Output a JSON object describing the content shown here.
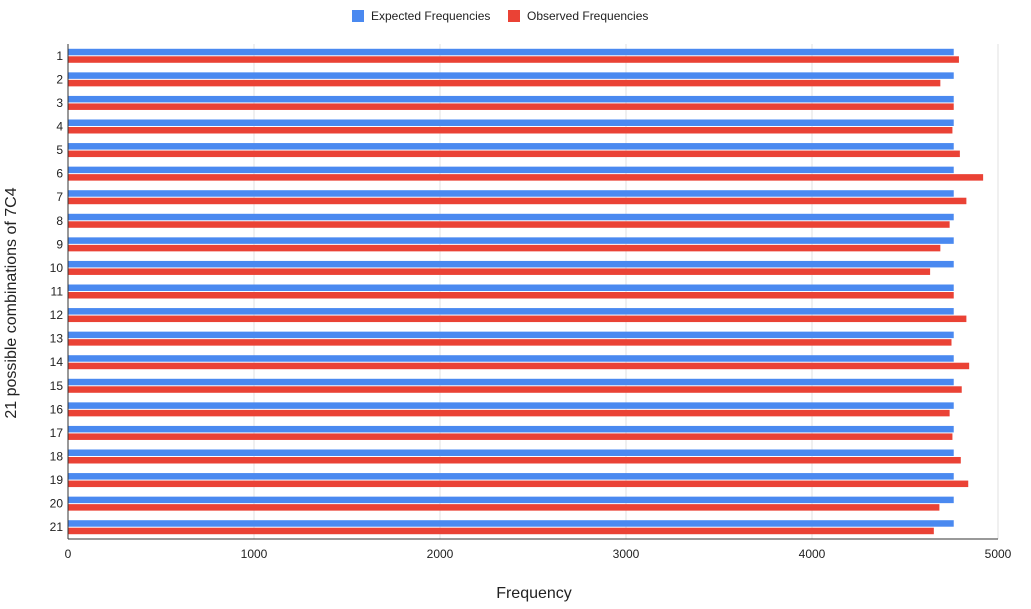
{
  "chart_data": {
    "type": "bar",
    "orientation": "horizontal",
    "title": "",
    "xlabel": "Frequency",
    "ylabel": "21 possible combinations of 7C4",
    "xlim": [
      0,
      5000
    ],
    "x_ticks": [
      0,
      1000,
      2000,
      3000,
      4000,
      5000
    ],
    "grid": true,
    "legend_position": "top",
    "categories": [
      "1",
      "2",
      "3",
      "4",
      "5",
      "6",
      "7",
      "8",
      "9",
      "10",
      "11",
      "12",
      "13",
      "14",
      "15",
      "16",
      "17",
      "18",
      "19",
      "20",
      "21"
    ],
    "series": [
      {
        "name": "Expected Frequencies",
        "color": "#4a89f0",
        "values": [
          4762,
          4762,
          4762,
          4762,
          4762,
          4762,
          4762,
          4762,
          4762,
          4762,
          4762,
          4762,
          4762,
          4762,
          4762,
          4762,
          4762,
          4762,
          4762,
          4762,
          4762
        ]
      },
      {
        "name": "Observed Frequencies",
        "color": "#ea4235",
        "values": [
          4790,
          4690,
          4762,
          4755,
          4795,
          4920,
          4830,
          4740,
          4690,
          4635,
          4762,
          4830,
          4750,
          4845,
          4805,
          4740,
          4755,
          4800,
          4840,
          4685,
          4655
        ]
      }
    ]
  },
  "colors": {
    "gridline": "#e0e0e0",
    "axis": "#333333",
    "text": "#222222"
  }
}
